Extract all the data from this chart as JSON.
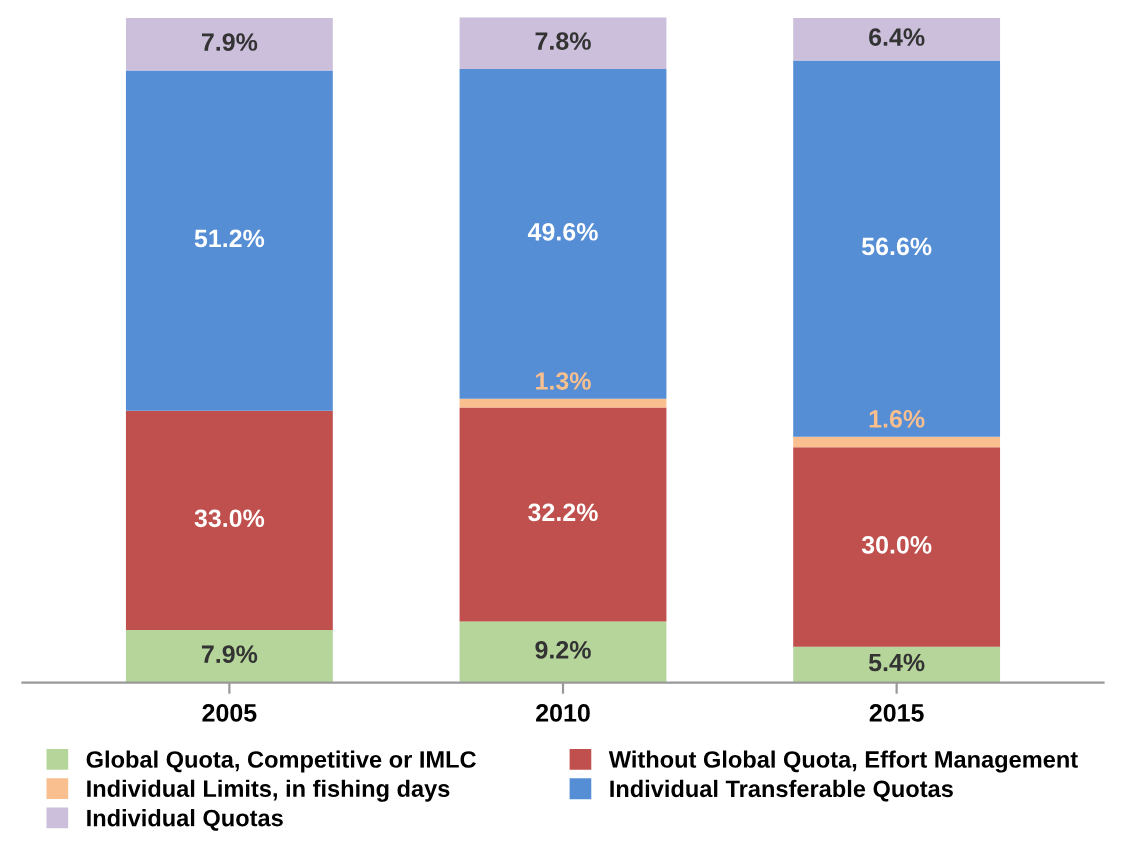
{
  "chart_data": {
    "type": "bar",
    "stacked": true,
    "categories": [
      "2005",
      "2010",
      "2015"
    ],
    "series": [
      {
        "name": "Global Quota, Competitive or IMLC",
        "color": "#b5d59a",
        "values": [
          7.9,
          9.2,
          5.4
        ],
        "value_labels": [
          "7.9%",
          "9.2%",
          "5.4%"
        ]
      },
      {
        "name": "Without Global Quota, Effort Management",
        "color": "#c0504d",
        "values": [
          33.0,
          32.2,
          30.0
        ],
        "value_labels": [
          "33.0%",
          "32.2%",
          "30.0%"
        ]
      },
      {
        "name": "Individual Limits, in fishing days",
        "color": "#f9bf8f",
        "values": [
          null,
          1.3,
          1.6
        ],
        "value_labels": [
          null,
          "1.3%",
          "1.6%"
        ]
      },
      {
        "name": "Individual Transferable Quotas",
        "color": "#558ed5",
        "values": [
          51.2,
          49.6,
          56.6
        ],
        "value_labels": [
          "51.2%",
          "49.6%",
          "56.6%"
        ]
      },
      {
        "name": "Individual Quotas",
        "color": "#cbbfdb",
        "values": [
          7.9,
          7.8,
          6.4
        ],
        "value_labels": [
          "7.9%",
          "7.8%",
          "6.4%"
        ]
      }
    ],
    "legend": "bottom",
    "grid": false
  }
}
